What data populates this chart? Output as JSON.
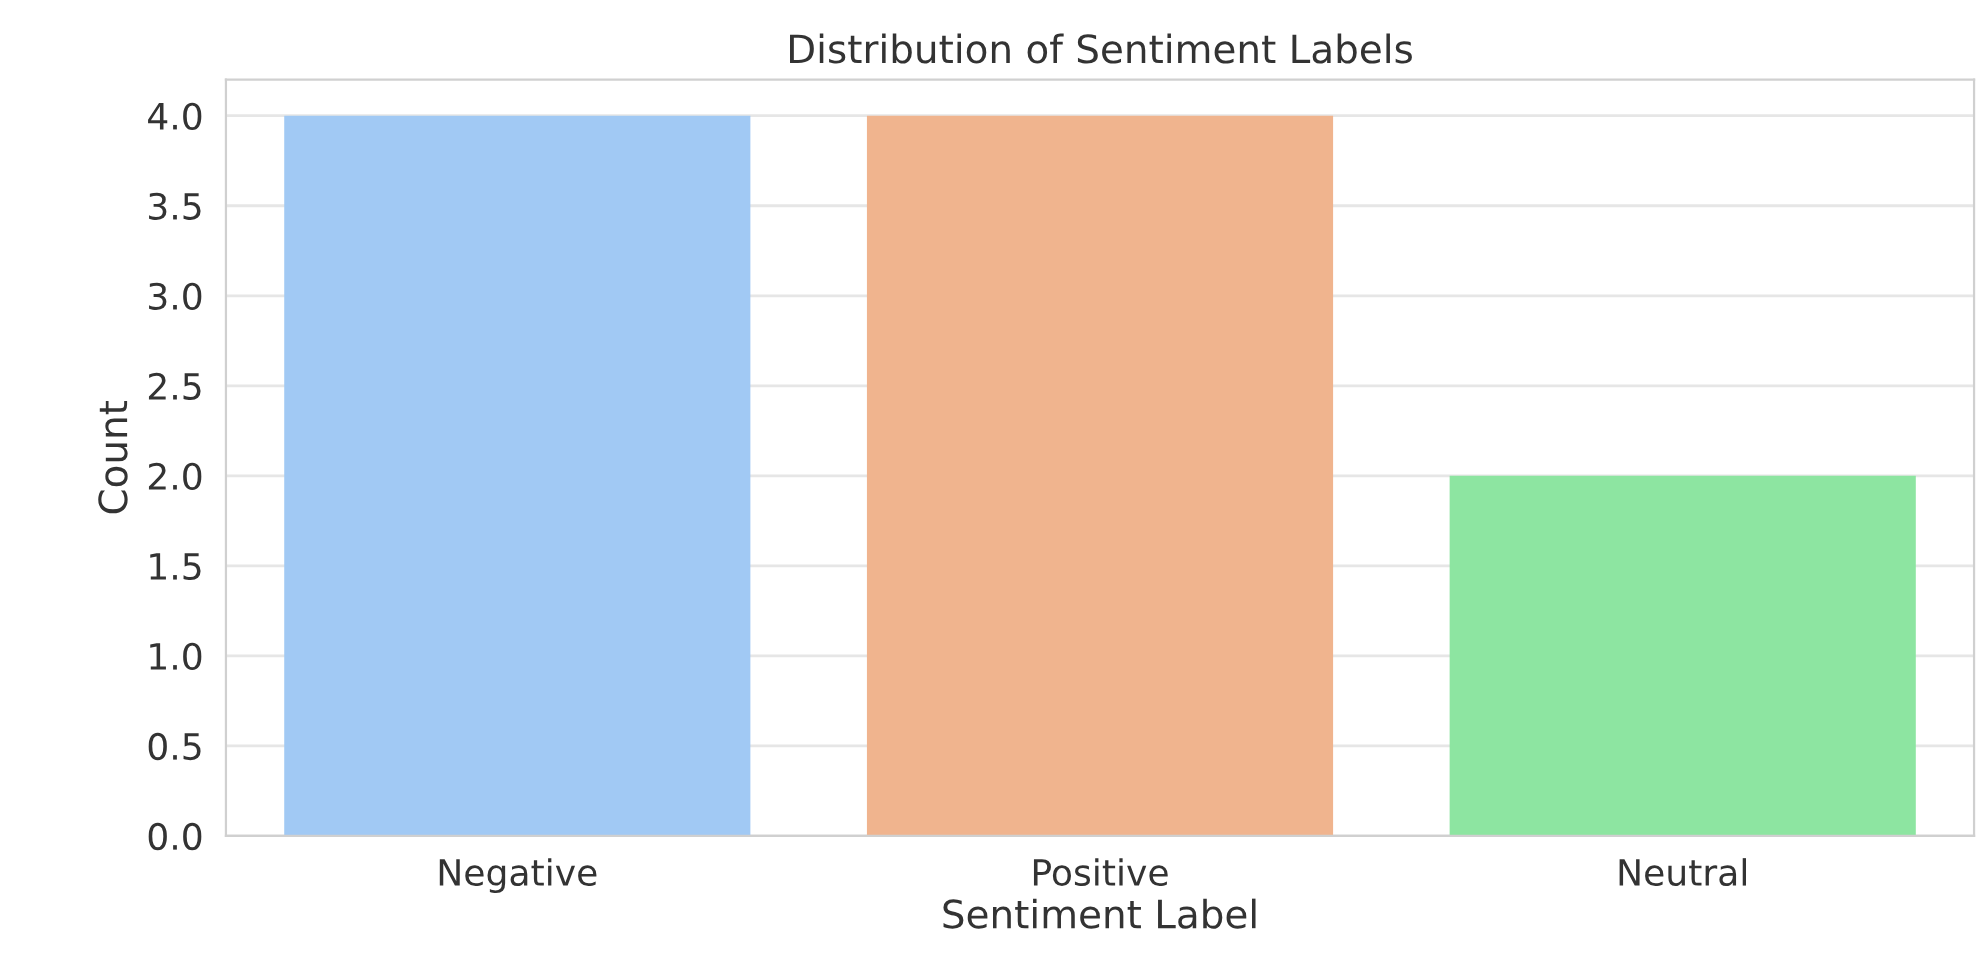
{
  "chart_data": {
    "type": "bar",
    "title": "Distribution of Sentiment Labels",
    "xlabel": "Sentiment Label",
    "ylabel": "Count",
    "categories": [
      "Negative",
      "Positive",
      "Neutral"
    ],
    "values": [
      4,
      4,
      2
    ],
    "colors": [
      "#a1c9f4",
      "#f0b48e",
      "#8de5a1"
    ],
    "ylim": [
      0,
      4.2
    ],
    "yticks": [
      {
        "value": 0,
        "label": "0.0"
      },
      {
        "value": 0.5,
        "label": "0.5"
      },
      {
        "value": 1,
        "label": "1.0"
      },
      {
        "value": 1.5,
        "label": "1.5"
      },
      {
        "value": 2,
        "label": "2.0"
      },
      {
        "value": 2.5,
        "label": "2.5"
      },
      {
        "value": 3,
        "label": "3.0"
      },
      {
        "value": 3.5,
        "label": "3.5"
      },
      {
        "value": 4,
        "label": "4.0"
      }
    ],
    "grid": "y",
    "legend": false
  }
}
